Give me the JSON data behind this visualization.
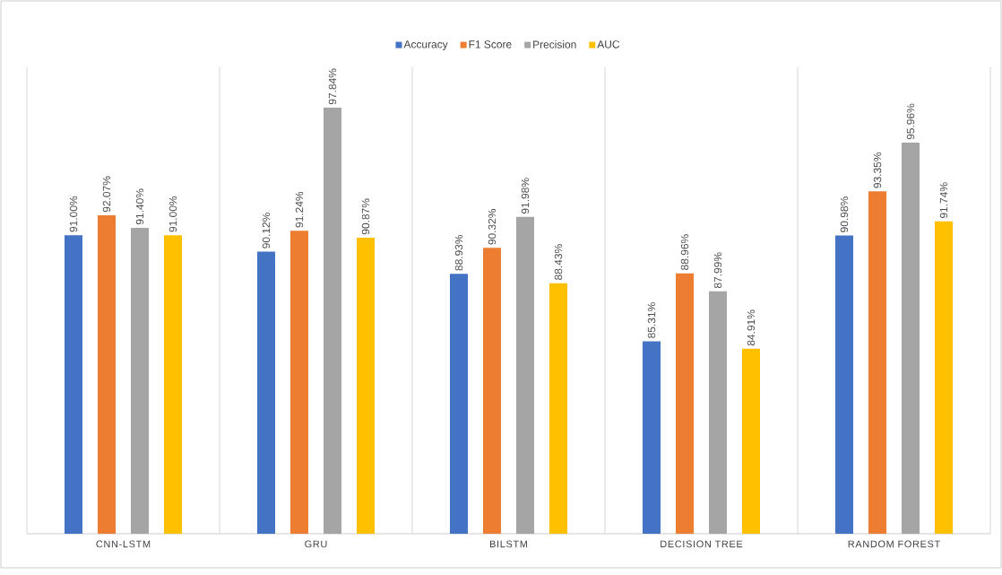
{
  "chart_data": {
    "type": "bar",
    "categories": [
      "CNN-LSTM",
      "GRU",
      "BILSTM",
      "DECISION TREE",
      "RANDOM FOREST"
    ],
    "series": [
      {
        "name": "Accuracy",
        "color": "#4472c4",
        "values": [
          91.0,
          90.12,
          88.93,
          85.31,
          90.98
        ],
        "value_labels": [
          "91.00%",
          "90.12%",
          "88.93%",
          "85.31%",
          "90.98%"
        ]
      },
      {
        "name": "F1 Score",
        "color": "#ed7d31",
        "values": [
          92.07,
          91.24,
          90.32,
          88.96,
          93.35
        ],
        "value_labels": [
          "92.07%",
          "91.24%",
          "90.32%",
          "88.96%",
          "93.35%"
        ]
      },
      {
        "name": "Precision",
        "color": "#a5a5a5",
        "values": [
          91.4,
          97.84,
          91.98,
          87.99,
          95.96
        ],
        "value_labels": [
          "91.40%",
          "97.84%",
          "91.98%",
          "87.99%",
          "95.96%"
        ]
      },
      {
        "name": "AUC",
        "color": "#ffc000",
        "values": [
          91.0,
          90.87,
          88.43,
          84.91,
          91.74
        ],
        "value_labels": [
          "91.00%",
          "90.87%",
          "88.43%",
          "84.91%",
          "91.74%"
        ]
      }
    ],
    "ylim": [
      75,
      100
    ],
    "grid": "x",
    "legend": "top"
  }
}
